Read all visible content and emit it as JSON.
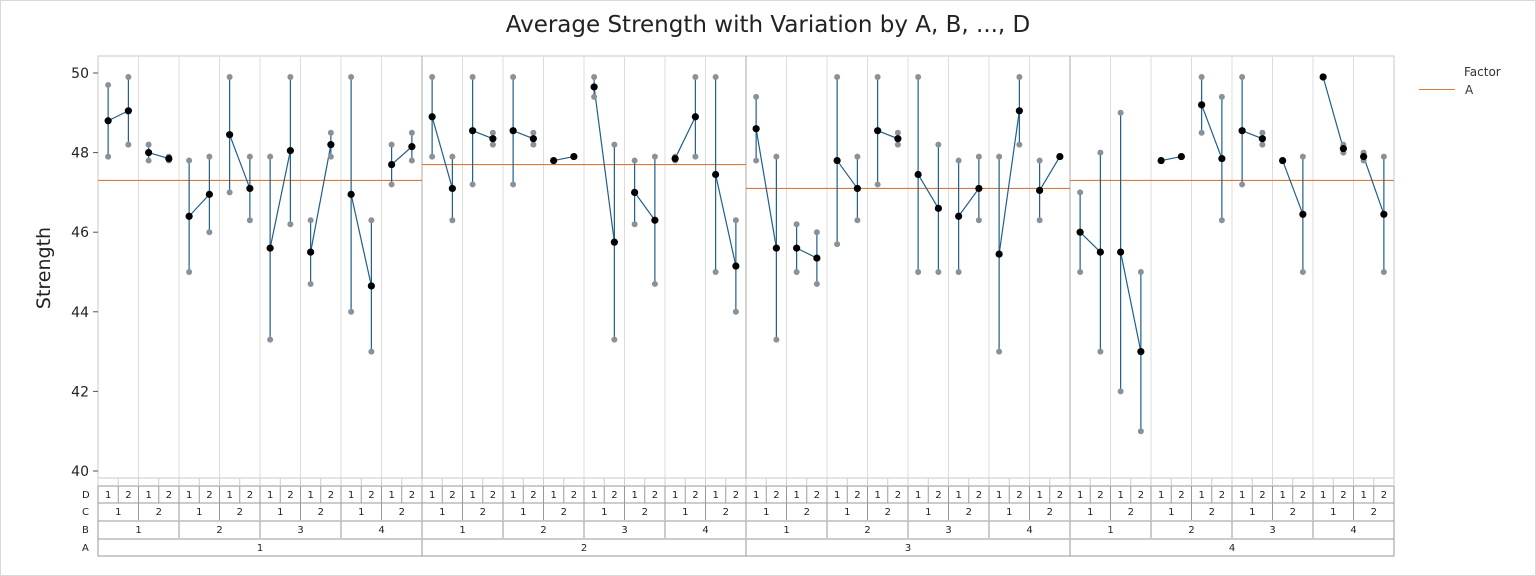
{
  "chart_data": {
    "type": "line",
    "title": "Average Strength with Variation by A, B, ..., D",
    "ylabel": "Strength",
    "xlabel": "",
    "ylim": [
      40,
      50.5
    ],
    "yticks": [
      40,
      42,
      44,
      46,
      48,
      50
    ],
    "grid": "vertical",
    "legend": {
      "title": "Factor",
      "placement": "top-right",
      "entries": [
        {
          "name": "A",
          "color": "#d97a3a"
        }
      ]
    },
    "colors": {
      "range_line": "#1f5f8b",
      "mean_marker": "#000000",
      "obs_marker": "#8a9199",
      "reference_line": "#d97a3a"
    },
    "x_levels": {
      "A": [
        "1",
        "2",
        "3",
        "4"
      ],
      "B": [
        "1",
        "2",
        "3",
        "4"
      ],
      "C": [
        "1",
        "2"
      ],
      "D": [
        "1",
        "2"
      ]
    },
    "table_row_labels": [
      "D",
      "C",
      "B",
      "A"
    ],
    "a_means": [
      47.3,
      47.7,
      47.1,
      47.3
    ],
    "cells": [
      {
        "a": 1,
        "b": 1,
        "c": 1,
        "d": 1,
        "mean": 48.8,
        "min": 47.9,
        "max": 49.7
      },
      {
        "a": 1,
        "b": 1,
        "c": 1,
        "d": 2,
        "mean": 49.05,
        "min": 48.2,
        "max": 49.9
      },
      {
        "a": 1,
        "b": 1,
        "c": 2,
        "d": 1,
        "mean": 48.0,
        "min": 47.8,
        "max": 48.2
      },
      {
        "a": 1,
        "b": 1,
        "c": 2,
        "d": 2,
        "mean": 47.85,
        "min": 47.8,
        "max": 47.9
      },
      {
        "a": 1,
        "b": 2,
        "c": 1,
        "d": 1,
        "mean": 46.4,
        "min": 45.0,
        "max": 47.8
      },
      {
        "a": 1,
        "b": 2,
        "c": 1,
        "d": 2,
        "mean": 46.95,
        "min": 46.0,
        "max": 47.9
      },
      {
        "a": 1,
        "b": 2,
        "c": 2,
        "d": 1,
        "mean": 48.45,
        "min": 47.0,
        "max": 49.9
      },
      {
        "a": 1,
        "b": 2,
        "c": 2,
        "d": 2,
        "mean": 47.1,
        "min": 46.3,
        "max": 47.9
      },
      {
        "a": 1,
        "b": 3,
        "c": 1,
        "d": 1,
        "mean": 45.6,
        "min": 43.3,
        "max": 47.9
      },
      {
        "a": 1,
        "b": 3,
        "c": 1,
        "d": 2,
        "mean": 48.05,
        "min": 46.2,
        "max": 49.9
      },
      {
        "a": 1,
        "b": 3,
        "c": 2,
        "d": 1,
        "mean": 45.5,
        "min": 44.7,
        "max": 46.3
      },
      {
        "a": 1,
        "b": 3,
        "c": 2,
        "d": 2,
        "mean": 48.2,
        "min": 47.9,
        "max": 48.5
      },
      {
        "a": 1,
        "b": 4,
        "c": 1,
        "d": 1,
        "mean": 46.95,
        "min": 44.0,
        "max": 49.9
      },
      {
        "a": 1,
        "b": 4,
        "c": 1,
        "d": 2,
        "mean": 44.65,
        "min": 43.0,
        "max": 46.3
      },
      {
        "a": 1,
        "b": 4,
        "c": 2,
        "d": 1,
        "mean": 47.7,
        "min": 47.2,
        "max": 48.2
      },
      {
        "a": 1,
        "b": 4,
        "c": 2,
        "d": 2,
        "mean": 48.15,
        "min": 47.8,
        "max": 48.5
      },
      {
        "a": 2,
        "b": 1,
        "c": 1,
        "d": 1,
        "mean": 48.9,
        "min": 47.9,
        "max": 49.9
      },
      {
        "a": 2,
        "b": 1,
        "c": 1,
        "d": 2,
        "mean": 47.1,
        "min": 46.3,
        "max": 47.9
      },
      {
        "a": 2,
        "b": 1,
        "c": 2,
        "d": 1,
        "mean": 48.55,
        "min": 47.2,
        "max": 49.9
      },
      {
        "a": 2,
        "b": 1,
        "c": 2,
        "d": 2,
        "mean": 48.35,
        "min": 48.2,
        "max": 48.5
      },
      {
        "a": 2,
        "b": 2,
        "c": 1,
        "d": 1,
        "mean": 48.55,
        "min": 47.2,
        "max": 49.9
      },
      {
        "a": 2,
        "b": 2,
        "c": 1,
        "d": 2,
        "mean": 48.35,
        "min": 48.2,
        "max": 48.5
      },
      {
        "a": 2,
        "b": 2,
        "c": 2,
        "d": 1,
        "mean": 47.8,
        "min": 47.8,
        "max": 47.8
      },
      {
        "a": 2,
        "b": 2,
        "c": 2,
        "d": 2,
        "mean": 47.9,
        "min": 47.9,
        "max": 47.9
      },
      {
        "a": 2,
        "b": 3,
        "c": 1,
        "d": 1,
        "mean": 49.65,
        "min": 49.4,
        "max": 49.9
      },
      {
        "a": 2,
        "b": 3,
        "c": 1,
        "d": 2,
        "mean": 45.75,
        "min": 43.3,
        "max": 48.2
      },
      {
        "a": 2,
        "b": 3,
        "c": 2,
        "d": 1,
        "mean": 47.0,
        "min": 46.2,
        "max": 47.8
      },
      {
        "a": 2,
        "b": 3,
        "c": 2,
        "d": 2,
        "mean": 46.3,
        "min": 44.7,
        "max": 47.9
      },
      {
        "a": 2,
        "b": 4,
        "c": 1,
        "d": 1,
        "mean": 47.85,
        "min": 47.8,
        "max": 47.9
      },
      {
        "a": 2,
        "b": 4,
        "c": 1,
        "d": 2,
        "mean": 48.9,
        "min": 47.9,
        "max": 49.9
      },
      {
        "a": 2,
        "b": 4,
        "c": 2,
        "d": 1,
        "mean": 47.45,
        "min": 45.0,
        "max": 49.9
      },
      {
        "a": 2,
        "b": 4,
        "c": 2,
        "d": 2,
        "mean": 45.15,
        "min": 44.0,
        "max": 46.3
      },
      {
        "a": 3,
        "b": 1,
        "c": 1,
        "d": 1,
        "mean": 48.6,
        "min": 47.8,
        "max": 49.4
      },
      {
        "a": 3,
        "b": 1,
        "c": 1,
        "d": 2,
        "mean": 45.6,
        "min": 43.3,
        "max": 47.9
      },
      {
        "a": 3,
        "b": 1,
        "c": 2,
        "d": 1,
        "mean": 45.6,
        "min": 45.0,
        "max": 46.2
      },
      {
        "a": 3,
        "b": 1,
        "c": 2,
        "d": 2,
        "mean": 45.35,
        "min": 44.7,
        "max": 46.0
      },
      {
        "a": 3,
        "b": 2,
        "c": 1,
        "d": 1,
        "mean": 47.8,
        "min": 45.7,
        "max": 49.9
      },
      {
        "a": 3,
        "b": 2,
        "c": 1,
        "d": 2,
        "mean": 47.1,
        "min": 46.3,
        "max": 47.9
      },
      {
        "a": 3,
        "b": 2,
        "c": 2,
        "d": 1,
        "mean": 48.55,
        "min": 47.2,
        "max": 49.9
      },
      {
        "a": 3,
        "b": 2,
        "c": 2,
        "d": 2,
        "mean": 48.35,
        "min": 48.2,
        "max": 48.5
      },
      {
        "a": 3,
        "b": 3,
        "c": 1,
        "d": 1,
        "mean": 47.45,
        "min": 45.0,
        "max": 49.9
      },
      {
        "a": 3,
        "b": 3,
        "c": 1,
        "d": 2,
        "mean": 46.6,
        "min": 45.0,
        "max": 48.2
      },
      {
        "a": 3,
        "b": 3,
        "c": 2,
        "d": 1,
        "mean": 46.4,
        "min": 45.0,
        "max": 47.8
      },
      {
        "a": 3,
        "b": 3,
        "c": 2,
        "d": 2,
        "mean": 47.1,
        "min": 46.3,
        "max": 47.9
      },
      {
        "a": 3,
        "b": 4,
        "c": 1,
        "d": 1,
        "mean": 45.45,
        "min": 43.0,
        "max": 47.9
      },
      {
        "a": 3,
        "b": 4,
        "c": 1,
        "d": 2,
        "mean": 49.05,
        "min": 48.2,
        "max": 49.9
      },
      {
        "a": 3,
        "b": 4,
        "c": 2,
        "d": 1,
        "mean": 47.05,
        "min": 46.3,
        "max": 47.8
      },
      {
        "a": 3,
        "b": 4,
        "c": 2,
        "d": 2,
        "mean": 47.9,
        "min": 47.9,
        "max": 47.9
      },
      {
        "a": 4,
        "b": 1,
        "c": 1,
        "d": 1,
        "mean": 46.0,
        "min": 45.0,
        "max": 47.0
      },
      {
        "a": 4,
        "b": 1,
        "c": 1,
        "d": 2,
        "mean": 45.5,
        "min": 43.0,
        "max": 48.0
      },
      {
        "a": 4,
        "b": 1,
        "c": 2,
        "d": 1,
        "mean": 45.5,
        "min": 42.0,
        "max": 49.0
      },
      {
        "a": 4,
        "b": 1,
        "c": 2,
        "d": 2,
        "mean": 43.0,
        "min": 41.0,
        "max": 45.0
      },
      {
        "a": 4,
        "b": 2,
        "c": 1,
        "d": 1,
        "mean": 47.8,
        "min": 47.8,
        "max": 47.8
      },
      {
        "a": 4,
        "b": 2,
        "c": 1,
        "d": 2,
        "mean": 47.9,
        "min": 47.9,
        "max": 47.9
      },
      {
        "a": 4,
        "b": 2,
        "c": 2,
        "d": 1,
        "mean": 49.2,
        "min": 48.5,
        "max": 49.9
      },
      {
        "a": 4,
        "b": 2,
        "c": 2,
        "d": 2,
        "mean": 47.85,
        "min": 46.3,
        "max": 49.4
      },
      {
        "a": 4,
        "b": 3,
        "c": 1,
        "d": 1,
        "mean": 48.55,
        "min": 47.2,
        "max": 49.9
      },
      {
        "a": 4,
        "b": 3,
        "c": 1,
        "d": 2,
        "mean": 48.35,
        "min": 48.2,
        "max": 48.5
      },
      {
        "a": 4,
        "b": 3,
        "c": 2,
        "d": 1,
        "mean": 47.8,
        "min": 47.8,
        "max": 47.8
      },
      {
        "a": 4,
        "b": 3,
        "c": 2,
        "d": 2,
        "mean": 46.45,
        "min": 45.0,
        "max": 47.9
      },
      {
        "a": 4,
        "b": 4,
        "c": 1,
        "d": 1,
        "mean": 49.9,
        "min": 49.9,
        "max": 49.9
      },
      {
        "a": 4,
        "b": 4,
        "c": 1,
        "d": 2,
        "mean": 48.1,
        "min": 48.0,
        "max": 48.2
      },
      {
        "a": 4,
        "b": 4,
        "c": 2,
        "d": 1,
        "mean": 47.9,
        "min": 47.8,
        "max": 48.0
      },
      {
        "a": 4,
        "b": 4,
        "c": 2,
        "d": 2,
        "mean": 46.45,
        "min": 45.0,
        "max": 47.9
      }
    ]
  }
}
